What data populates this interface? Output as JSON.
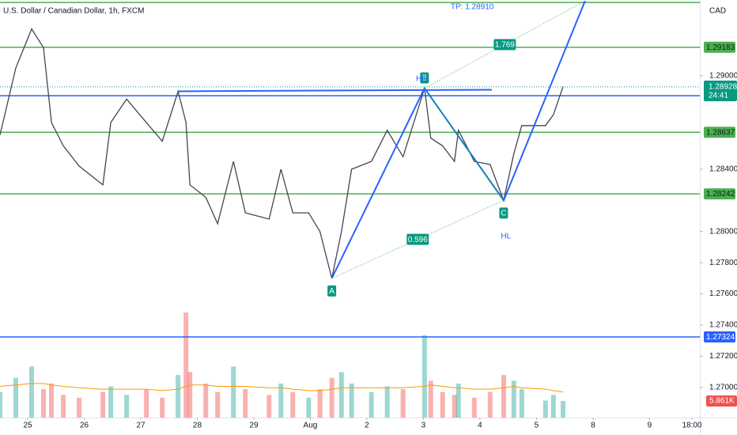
{
  "chart_data": {
    "type": "line",
    "title": "U.S. Dollar / Canadian Dollar, 1h, FXCM",
    "currency": "CAD",
    "color": "#434651",
    "up_color": "#26a69a",
    "down_color": "#ef5350",
    "x": [
      -0.49,
      -0.21,
      0.07,
      0.28,
      0.42,
      0.63,
      0.91,
      1.33,
      1.47,
      1.75,
      2.1,
      2.38,
      2.66,
      2.8,
      2.87,
      3.15,
      3.36,
      3.64,
      3.85,
      4.27,
      4.48,
      4.69,
      4.97,
      5.17,
      5.38,
      5.55,
      5.73,
      6.08,
      6.36,
      6.64,
      7.02,
      7.13,
      7.34,
      7.55,
      7.62,
      7.9,
      8.18,
      8.42,
      8.6,
      8.74,
      9.16,
      9.3,
      9.47
    ],
    "values": [
      1.2862,
      1.2905,
      1.293,
      1.2918,
      1.287,
      1.2855,
      1.2842,
      1.283,
      1.287,
      1.2885,
      1.287,
      1.2858,
      1.289,
      1.287,
      1.283,
      1.2822,
      1.2805,
      1.2845,
      1.2812,
      1.2808,
      1.284,
      1.2812,
      1.2812,
      1.28,
      1.277,
      1.28,
      1.284,
      1.2845,
      1.2865,
      1.2848,
      1.2892,
      1.286,
      1.2855,
      1.2845,
      1.2865,
      1.2845,
      1.2843,
      1.282,
      1.285,
      1.2868,
      1.2868,
      1.2875,
      1.2893
    ],
    "volume": [
      9,
      14,
      18,
      10,
      12,
      8,
      7,
      9,
      11,
      8,
      10,
      7,
      15,
      37,
      16,
      12,
      9,
      18,
      10,
      8,
      12,
      9,
      7,
      10,
      14,
      16,
      12,
      9,
      11,
      10,
      29,
      13,
      9,
      8,
      12,
      7,
      9,
      15,
      13,
      10,
      6,
      8,
      5.861
    ],
    "volume_ma": [
      11,
      11.5,
      12,
      12,
      11.5,
      11,
      10.5,
      10,
      10,
      10,
      10,
      9.5,
      10,
      11,
      11.5,
      11.5,
      11,
      11,
      11,
      10.5,
      10.5,
      10,
      9.5,
      9.5,
      10,
      10.5,
      10.5,
      10.5,
      10.5,
      10.5,
      11,
      11.5,
      11,
      10.5,
      10.5,
      10,
      10,
      10.5,
      11,
      10.5,
      10,
      9.5,
      9
    ],
    "vlim": [
      0,
      147
    ],
    "volume_label": {
      "value": 5.861,
      "label": "5.861K"
    },
    "xlim": [
      -0.49,
      11.89
    ],
    "xticks": [
      {
        "value": 0,
        "label": "25"
      },
      {
        "value": 1,
        "label": "26"
      },
      {
        "value": 2,
        "label": "27"
      },
      {
        "value": 3,
        "label": "28"
      },
      {
        "value": 4,
        "label": "29"
      },
      {
        "value": 5,
        "label": "Aug"
      },
      {
        "value": 6,
        "label": "2"
      },
      {
        "value": 7,
        "label": "3"
      },
      {
        "value": 8,
        "label": "4"
      },
      {
        "value": 9,
        "label": "5"
      },
      {
        "value": 10,
        "label": "8"
      },
      {
        "value": 11,
        "label": "9"
      },
      {
        "value": 11.75,
        "label": "18:00"
      }
    ],
    "ylim": [
      1.26806,
      1.29486
    ],
    "yticks": [
      {
        "value": 1.29,
        "label": "1.29000"
      },
      {
        "value": 1.284,
        "label": "1.28400"
      },
      {
        "value": 1.28,
        "label": "1.28000"
      },
      {
        "value": 1.278,
        "label": "1.27800"
      },
      {
        "value": 1.276,
        "label": "1.27600"
      },
      {
        "value": 1.274,
        "label": "1.27400"
      },
      {
        "value": 1.272,
        "label": "1.27200"
      },
      {
        "value": 1.27,
        "label": "1.27000"
      }
    ],
    "levels": [
      {
        "value": 1.2947,
        "color": "#4caf50"
      },
      {
        "value": 1.29183,
        "label": "1.29183",
        "color": "#4caf50"
      },
      {
        "value": 1.28637,
        "label": "1.28637",
        "color": "#4caf50"
      },
      {
        "value": 1.28242,
        "label": "1.28242",
        "color": "#4caf50"
      },
      {
        "value": 1.28872,
        "label": "1.28872",
        "color": "#2962ff"
      },
      {
        "value": 1.27324,
        "label": "1.27324",
        "color": "#2962ff"
      }
    ],
    "current_price": {
      "value": 1.28928,
      "label": "1.28928",
      "countdown": "24:41",
      "color": "#089981"
    },
    "trendline": {
      "x": [
        2.66,
        8.21
      ],
      "values": [
        1.289,
        1.2891
      ],
      "color": "#2962ff"
    },
    "pattern": {
      "x": [
        5.38,
        7.02,
        8.42,
        9.86
      ],
      "values": [
        1.277,
        1.2892,
        1.282,
        1.2948
      ],
      "labels": [
        "A",
        "B",
        "C"
      ],
      "target_label": "TP: 1.28910",
      "color": "#2962ff",
      "badge_color": "#089981"
    },
    "ratios": [
      0.596,
      1.769
    ],
    "annotations": [
      {
        "text": "HH",
        "x": 6.97,
        "y": 1.2898
      },
      {
        "text": "HL",
        "x": 8.46,
        "y": 1.2797
      }
    ]
  }
}
